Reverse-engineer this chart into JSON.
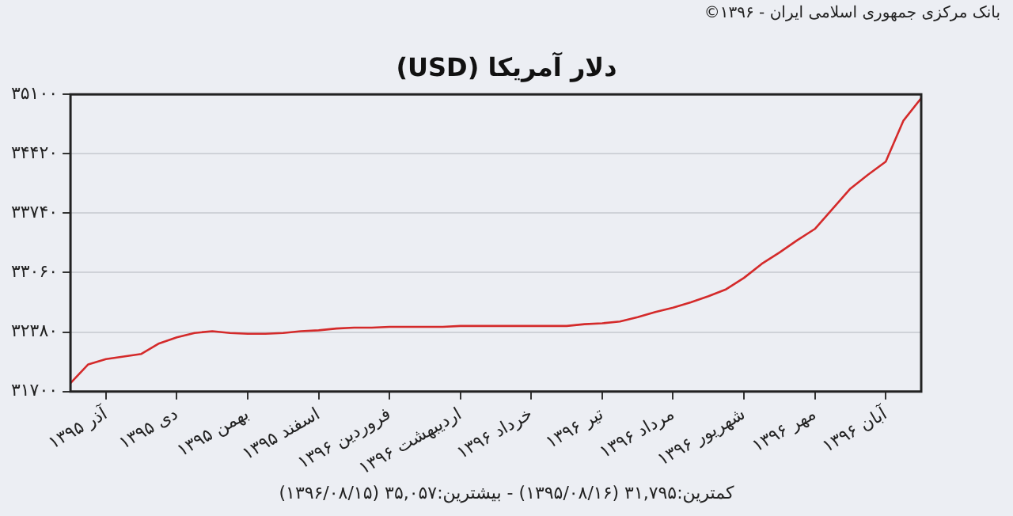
{
  "chart_data": {
    "type": "line",
    "title": "دلار آمریکا (USD)",
    "annotations": [
      "بانک مرکزی جمهوری اسلامی ایران - ۱۳۹۶©",
      "کمترین:۳۱,۷۹۵ (۱۳۹۵/۰۸/۱۶) - بیشترین:۳۵,۰۵۷ (۱۳۹۶/۰۸/۱۵)"
    ],
    "categories": [
      null,
      null,
      "آذر ۱۳۹۵",
      null,
      null,
      null,
      "دی ۱۳۹۵",
      null,
      null,
      null,
      "بهمن ۱۳۹۵",
      null,
      null,
      null,
      "اسفند ۱۳۹۵",
      null,
      null,
      null,
      "فروردین ۱۳۹۶",
      null,
      null,
      null,
      "اردیبهشت ۱۳۹۶",
      null,
      null,
      null,
      "خرداد ۱۳۹۶",
      null,
      null,
      null,
      "تیر ۱۳۹۶",
      null,
      null,
      null,
      "مرداد ۱۳۹۶",
      null,
      null,
      null,
      "شهریور ۱۳۹۶",
      null,
      null,
      null,
      "مهر ۱۳۹۶",
      null,
      null,
      null,
      "آبان ۱۳۹۶",
      null,
      null
    ],
    "series": [
      {
        "color": "#d42a2a",
        "values": [
          31795,
          32010,
          32070,
          32100,
          32130,
          32250,
          32320,
          32370,
          32390,
          32370,
          32360,
          32360,
          32370,
          32390,
          32400,
          32420,
          32430,
          32430,
          32440,
          32440,
          32440,
          32440,
          32450,
          32450,
          32450,
          32450,
          32450,
          32450,
          32450,
          32470,
          32480,
          32500,
          32550,
          32610,
          32660,
          32720,
          32790,
          32870,
          33000,
          33160,
          33290,
          33430,
          33560,
          33790,
          34020,
          34180,
          34330,
          34800,
          35057
        ]
      }
    ],
    "ylim": [
      31700,
      35100
    ],
    "yticks": [
      {
        "value": 31700,
        "label": "۳۱۷۰۰"
      },
      {
        "value": 32380,
        "label": "۳۲۳۸۰"
      },
      {
        "value": 33060,
        "label": "۳۳۰۶۰"
      },
      {
        "value": 33740,
        "label": "۳۳۷۴۰"
      },
      {
        "value": 34420,
        "label": "۳۴۴۲۰"
      },
      {
        "value": 35100,
        "label": "۳۵۱۰۰"
      }
    ],
    "grid": "y",
    "marker": "none",
    "line_style": "solid"
  }
}
